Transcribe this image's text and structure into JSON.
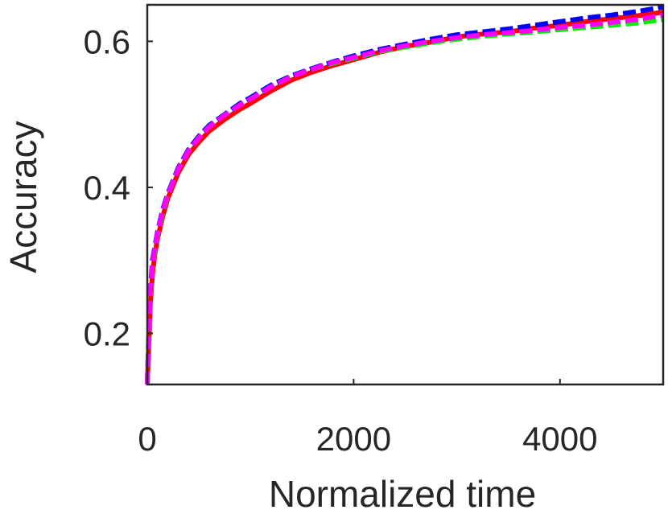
{
  "chart_data": {
    "type": "line",
    "title": "",
    "xlabel": "Normalized time",
    "ylabel": "Accuracy",
    "xlim": [
      0,
      5000
    ],
    "ylim": [
      0.13,
      0.65
    ],
    "xticks": [
      0,
      2000,
      4000
    ],
    "yticks": [
      0.2,
      0.4,
      0.6
    ],
    "xtick_labels": [
      "0",
      "2000",
      "4000"
    ],
    "ytick_labels": [
      "0.2",
      "0.4",
      "0.6"
    ],
    "grid": false,
    "legend": "none",
    "x": [
      0,
      10,
      20,
      30,
      50,
      75,
      100,
      150,
      200,
      300,
      400,
      500,
      600,
      750,
      900,
      1000,
      1200,
      1400,
      1600,
      1800,
      2000,
      2250,
      2500,
      2750,
      3000,
      3250,
      3500,
      3750,
      4000,
      4250,
      4500,
      4750,
      5000
    ],
    "series": [
      {
        "color": "#ff0000",
        "style": "solid",
        "values": [
          0.13,
          0.17,
          0.2,
          0.24,
          0.28,
          0.31,
          0.33,
          0.36,
          0.385,
          0.42,
          0.445,
          0.462,
          0.477,
          0.493,
          0.507,
          0.515,
          0.532,
          0.547,
          0.558,
          0.567,
          0.575,
          0.585,
          0.593,
          0.599,
          0.606,
          0.61,
          0.613,
          0.618,
          0.622,
          0.627,
          0.631,
          0.635,
          0.64
        ]
      },
      {
        "color": "#0000ff",
        "style": "dashed",
        "values": [
          0.13,
          0.18,
          0.22,
          0.26,
          0.3,
          0.32,
          0.34,
          0.37,
          0.392,
          0.427,
          0.452,
          0.47,
          0.485,
          0.5,
          0.515,
          0.523,
          0.54,
          0.553,
          0.563,
          0.572,
          0.58,
          0.589,
          0.596,
          0.603,
          0.609,
          0.613,
          0.617,
          0.622,
          0.627,
          0.632,
          0.636,
          0.641,
          0.647
        ]
      },
      {
        "color": "#00ee00",
        "style": "dashed",
        "values": [
          0.13,
          0.165,
          0.2,
          0.25,
          0.29,
          0.315,
          0.335,
          0.365,
          0.39,
          0.425,
          0.45,
          0.468,
          0.483,
          0.499,
          0.513,
          0.521,
          0.538,
          0.552,
          0.562,
          0.57,
          0.577,
          0.586,
          0.592,
          0.598,
          0.603,
          0.607,
          0.61,
          0.613,
          0.616,
          0.619,
          0.622,
          0.625,
          0.63
        ]
      },
      {
        "color": "#ff00ff",
        "style": "dashed",
        "values": [
          0.13,
          0.175,
          0.21,
          0.255,
          0.295,
          0.318,
          0.338,
          0.368,
          0.39,
          0.425,
          0.45,
          0.468,
          0.483,
          0.499,
          0.513,
          0.521,
          0.538,
          0.552,
          0.562,
          0.571,
          0.578,
          0.587,
          0.594,
          0.6,
          0.605,
          0.609,
          0.612,
          0.615,
          0.619,
          0.622,
          0.626,
          0.63,
          0.636
        ]
      }
    ]
  }
}
